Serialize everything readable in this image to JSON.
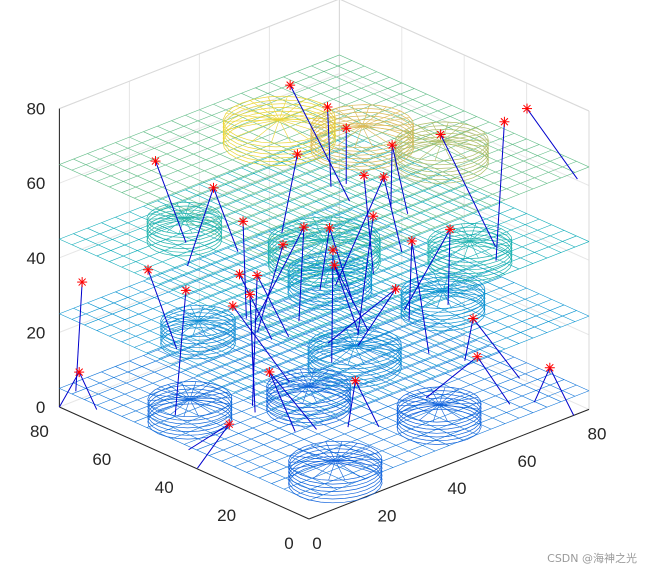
{
  "chart_data": {
    "type": "surface-3d",
    "title": "",
    "xlabel": "",
    "ylabel": "",
    "zlabel": "",
    "xlim": [
      0,
      80
    ],
    "ylim": [
      0,
      80
    ],
    "zlim": [
      0,
      80
    ],
    "x_ticks": [
      "0",
      "20",
      "40",
      "60",
      "80"
    ],
    "y_ticks": [
      "0",
      "20",
      "40",
      "60",
      "80"
    ],
    "z_ticks": [
      "0",
      "20",
      "40",
      "60",
      "80"
    ],
    "grid": true,
    "colormap": "parula",
    "layers": [
      {
        "z": 5,
        "name": ""
      },
      {
        "z": 25,
        "name": ""
      },
      {
        "z": 45,
        "name": ""
      },
      {
        "z": 65,
        "name": ""
      }
    ],
    "colors": {
      "marker": "#ff0000",
      "line": "#0000cc",
      "axis": "#262626",
      "grid": "#e6e6e6"
    }
  },
  "watermark": "CSDN @海神之光"
}
